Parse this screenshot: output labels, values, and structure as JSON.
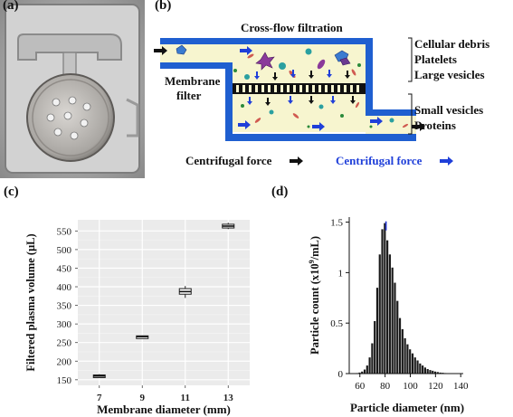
{
  "panels": {
    "a": {
      "label": "(a)"
    },
    "b": {
      "label": "(b)",
      "title": "Cross-flow filtration",
      "membrane_label": [
        "Membrane",
        "filter"
      ],
      "upper_labels": [
        "Cellular debris",
        "Platelets",
        "Large vesicles"
      ],
      "lower_labels": [
        "Small vesicles",
        "Proteins"
      ],
      "force_black": "Centrifugal force",
      "force_blue": "Centrifugal force",
      "colors": {
        "wall": "#1f5fd0",
        "fluid": "#f7f5cf",
        "membrane": "#111111",
        "arrow_blue": "#1f3fd9",
        "arrow_black": "#111111"
      }
    },
    "c": {
      "label": "(c)"
    },
    "d": {
      "label": "(d)"
    }
  },
  "chart_data": [
    {
      "type": "box",
      "panel": "c",
      "xlabel": "Membrane diameter (mm)",
      "ylabel": "Filtered plasma volume (μL)",
      "categories": [
        "7",
        "9",
        "11",
        "13"
      ],
      "yticks": [
        150,
        200,
        250,
        300,
        350,
        400,
        450,
        500,
        550
      ],
      "ylim": [
        135,
        580
      ],
      "boxes": [
        {
          "x": "7",
          "min": 157,
          "q1": 158,
          "median": 160,
          "q3": 163,
          "max": 165
        },
        {
          "x": "9",
          "min": 264,
          "q1": 265,
          "median": 266,
          "q3": 268,
          "max": 269
        },
        {
          "x": "11",
          "min": 370,
          "q1": 380,
          "median": 387,
          "q3": 395,
          "max": 402
        },
        {
          "x": "13",
          "min": 555,
          "q1": 558,
          "median": 563,
          "q3": 568,
          "max": 572
        }
      ],
      "grid": true,
      "background": "#ebebeb"
    },
    {
      "type": "bar",
      "panel": "d",
      "xlabel": "Particle diameter (nm)",
      "ylabel": "Particle count (x10⁹/mL)",
      "ylabel_parts": {
        "pre": "Particle count (x10",
        "sup": "9",
        "post": "/mL)"
      },
      "xticks": [
        60,
        80,
        100,
        120,
        140
      ],
      "yticks": [
        "0",
        "0.5",
        "1",
        "1.5"
      ],
      "yticks_values": [
        0,
        0.5,
        1,
        1.5
      ],
      "xlim": [
        53,
        142
      ],
      "ylim": [
        0,
        1.55
      ],
      "bin_width": 2,
      "x": [
        58,
        60,
        62,
        64,
        66,
        68,
        70,
        72,
        74,
        76,
        78,
        80,
        82,
        84,
        86,
        88,
        90,
        92,
        94,
        96,
        98,
        100,
        102,
        104,
        106,
        108,
        110,
        112,
        114,
        116,
        118,
        120,
        122,
        124,
        126,
        128,
        130
      ],
      "values": [
        0.005,
        0.01,
        0.02,
        0.04,
        0.08,
        0.16,
        0.3,
        0.52,
        0.85,
        1.18,
        1.43,
        1.49,
        1.32,
        1.18,
        1.05,
        0.9,
        0.72,
        0.55,
        0.44,
        0.35,
        0.29,
        0.24,
        0.2,
        0.16,
        0.13,
        0.1,
        0.08,
        0.06,
        0.045,
        0.035,
        0.028,
        0.02,
        0.015,
        0.01,
        0.008,
        0.005,
        0.003
      ],
      "peak_highlight_x": 80,
      "highlight_color": "#2233cc"
    }
  ]
}
